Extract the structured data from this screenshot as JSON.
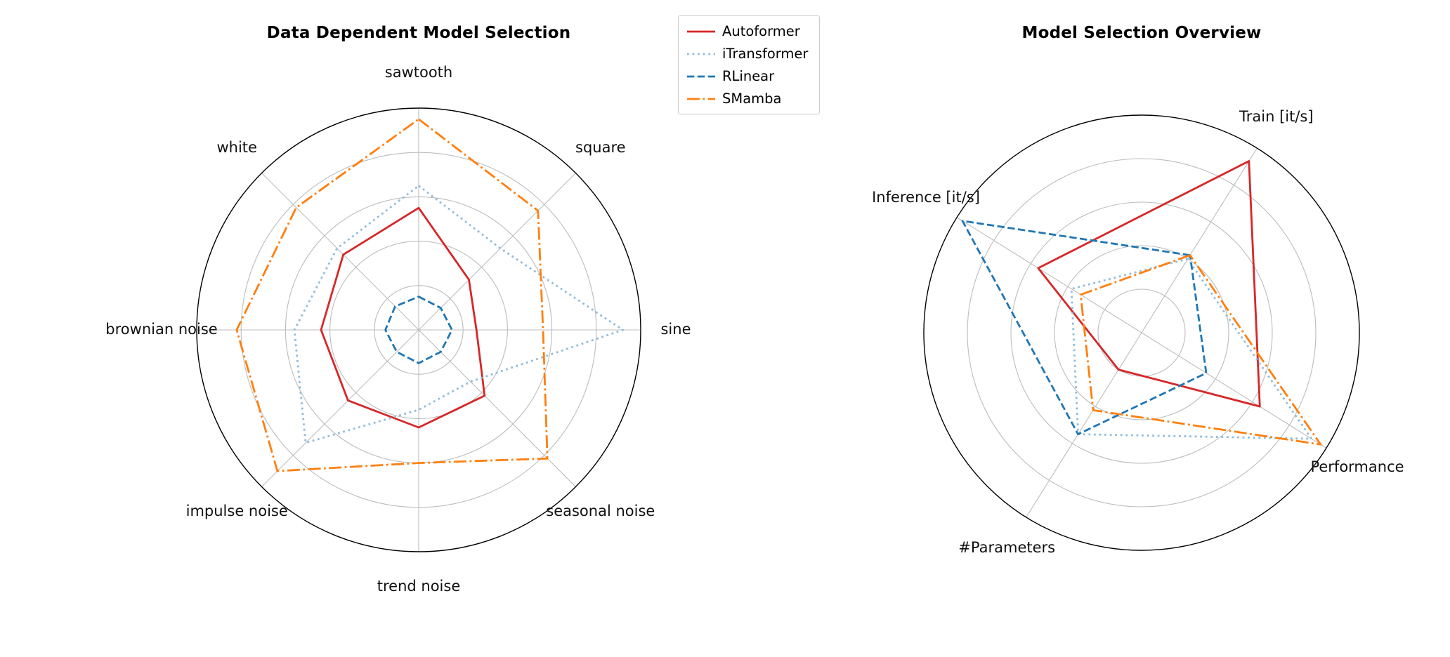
{
  "figure": {
    "background": "#ffffff",
    "text_color": "#111111",
    "grid_color": "#bcbcbc",
    "outline_color": "#000000"
  },
  "legend": {
    "position": "top-center",
    "entries": [
      {
        "label": "Autoformer",
        "color": "#d62728",
        "linestyle": "solid"
      },
      {
        "label": "iTransformer",
        "color": "#8fbcdb",
        "linestyle": "dotted"
      },
      {
        "label": "RLinear",
        "color": "#1f77b4",
        "linestyle": "dashed"
      },
      {
        "label": "SMamba",
        "color": "#ff7f0e",
        "linestyle": "dashdot"
      }
    ]
  },
  "chart_data": [
    {
      "type": "radar",
      "title": "Data Dependent Model Selection",
      "categories": [
        "sawtooth",
        "square",
        "sine",
        "seasonal noise",
        "trend noise",
        "impulse noise",
        "brownian noise",
        "white"
      ],
      "axis_angles_deg": [
        90,
        45,
        0,
        315,
        270,
        225,
        180,
        135
      ],
      "radial_range": [
        0,
        1
      ],
      "grid_rings": [
        0.2,
        0.4,
        0.6,
        0.8
      ],
      "grid": "on",
      "series": [
        {
          "name": "Autoformer",
          "color": "#d62728",
          "linestyle": "solid",
          "values": [
            0.55,
            0.32,
            0.26,
            0.42,
            0.44,
            0.45,
            0.44,
            0.48
          ]
        },
        {
          "name": "iTransformer",
          "color": "#8fbcdb",
          "linestyle": "dotted",
          "values": [
            0.65,
            0.52,
            0.92,
            0.33,
            0.36,
            0.72,
            0.56,
            0.52
          ]
        },
        {
          "name": "RLinear",
          "color": "#1f77b4",
          "linestyle": "dashed",
          "values": [
            0.15,
            0.14,
            0.15,
            0.14,
            0.15,
            0.14,
            0.15,
            0.15
          ]
        },
        {
          "name": "SMamba",
          "color": "#ff7f0e",
          "linestyle": "dashdot",
          "values": [
            0.95,
            0.76,
            0.56,
            0.82,
            0.6,
            0.9,
            0.82,
            0.78
          ]
        }
      ]
    },
    {
      "type": "radar",
      "title": "Model Selection Overview",
      "categories": [
        "Train [it/s]",
        "Inference [it/s]",
        "#Parameters",
        "Performance"
      ],
      "axis_angles_deg": [
        58,
        148,
        238,
        328
      ],
      "radial_range": [
        0,
        1
      ],
      "grid_rings": [
        0.2,
        0.4,
        0.6,
        0.8
      ],
      "grid": "on",
      "series": [
        {
          "name": "Autoformer",
          "color": "#d62728",
          "linestyle": "solid",
          "values": [
            0.93,
            0.56,
            0.2,
            0.64
          ]
        },
        {
          "name": "iTransformer",
          "color": "#8fbcdb",
          "linestyle": "dotted",
          "values": [
            0.4,
            0.38,
            0.55,
            0.92
          ]
        },
        {
          "name": "RLinear",
          "color": "#1f77b4",
          "linestyle": "dashed",
          "values": [
            0.42,
            0.97,
            0.55,
            0.35
          ]
        },
        {
          "name": "SMamba",
          "color": "#ff7f0e",
          "linestyle": "dashdot",
          "values": [
            0.42,
            0.33,
            0.42,
            0.97
          ]
        }
      ]
    }
  ]
}
